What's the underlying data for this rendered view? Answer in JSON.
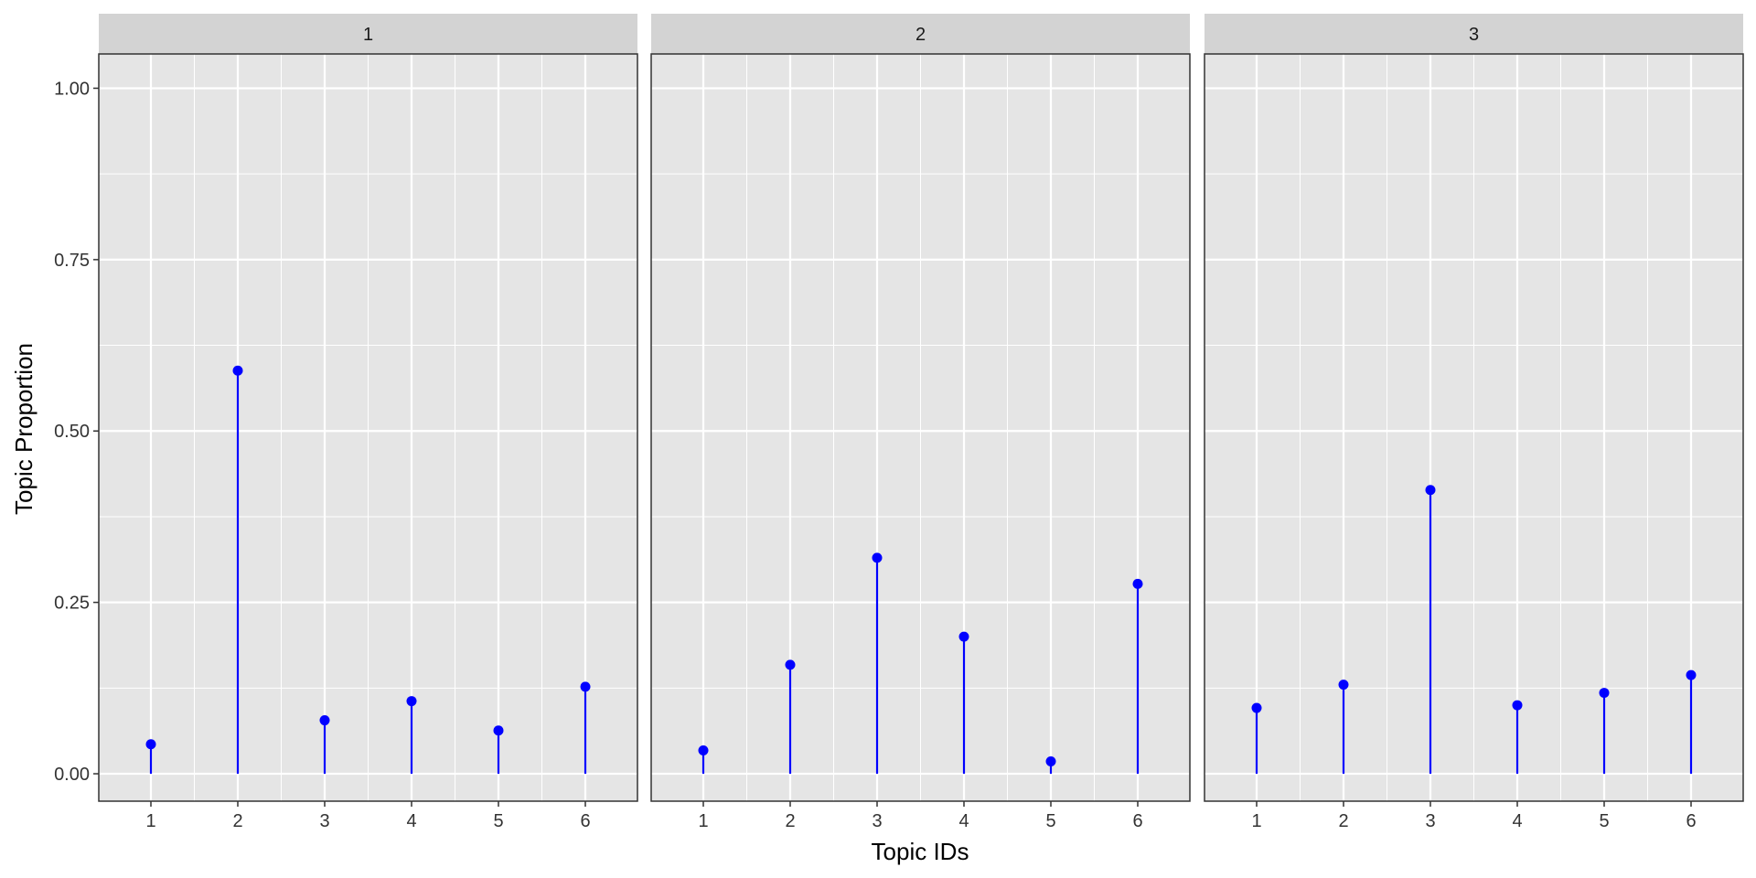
{
  "chart_data": {
    "type": "lollipop",
    "xlabel": "Topic IDs",
    "ylabel": "Topic Proportion",
    "ylim": [
      -0.04,
      1.05
    ],
    "y_ticks": [
      0.0,
      0.25,
      0.5,
      0.75,
      1.0
    ],
    "y_tick_labels": [
      "0.00",
      "0.25",
      "0.50",
      "0.75",
      "1.00"
    ],
    "x_ticks": [
      1,
      2,
      3,
      4,
      5,
      6
    ],
    "x_tick_labels": [
      "1",
      "2",
      "3",
      "4",
      "5",
      "6"
    ],
    "grid": true,
    "colors": {
      "series": "#0000ff",
      "panel_background": "#e5e5e5",
      "grid": "#ffffff",
      "strip_background": "#d3d3d3",
      "panel_border": "#333333",
      "text": "#333333"
    },
    "facets": [
      {
        "strip_label": "1",
        "x": [
          1,
          2,
          3,
          4,
          5,
          6
        ],
        "values": [
          0.043,
          0.588,
          0.078,
          0.106,
          0.063,
          0.127
        ]
      },
      {
        "strip_label": "2",
        "x": [
          1,
          2,
          3,
          4,
          5,
          6
        ],
        "values": [
          0.034,
          0.159,
          0.315,
          0.2,
          0.018,
          0.277
        ]
      },
      {
        "strip_label": "3",
        "x": [
          1,
          2,
          3,
          4,
          5,
          6
        ],
        "values": [
          0.096,
          0.13,
          0.414,
          0.1,
          0.118,
          0.144
        ]
      }
    ]
  }
}
